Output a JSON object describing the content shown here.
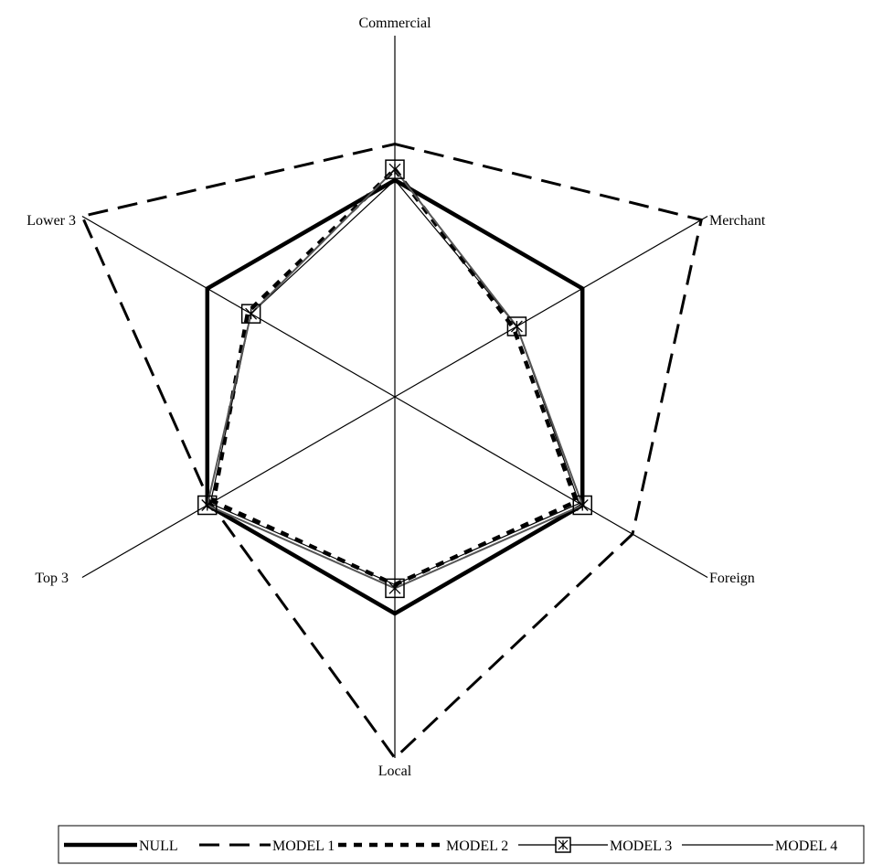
{
  "chart_data": {
    "type": "radar",
    "axes": [
      "Commercial",
      "Merchant",
      "Foreign",
      "Local",
      "Top 3",
      "Lower 3"
    ],
    "range": [
      0,
      1
    ],
    "series": [
      {
        "name": "NULL",
        "values": [
          0.6,
          0.6,
          0.6,
          0.6,
          0.6,
          0.6
        ],
        "color": "#000000",
        "style": "solid-thick"
      },
      {
        "name": "MODEL 1",
        "values": [
          0.7,
          0.98,
          0.76,
          1.0,
          0.59,
          1.0
        ],
        "color": "#000000",
        "style": "dash-long"
      },
      {
        "name": "MODEL 2",
        "values": [
          0.63,
          0.38,
          0.58,
          0.52,
          0.58,
          0.47
        ],
        "color": "#000000",
        "style": "dash-short-thick"
      },
      {
        "name": "MODEL 3",
        "values": [
          0.63,
          0.39,
          0.6,
          0.53,
          0.6,
          0.46
        ],
        "color": "#555555",
        "style": "marker-box-x"
      },
      {
        "name": "MODEL 4",
        "values": [
          0.6,
          0.39,
          0.59,
          0.52,
          0.59,
          0.46
        ],
        "color": "#000000",
        "style": "solid-thin"
      }
    ]
  }
}
